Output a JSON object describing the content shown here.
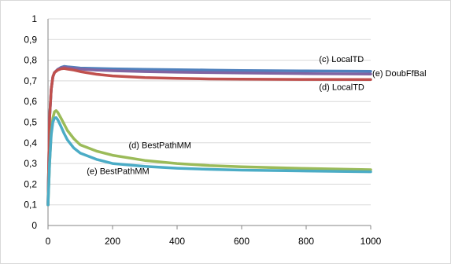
{
  "chart_data": {
    "type": "line",
    "title": "",
    "xlabel": "",
    "ylabel": "",
    "xlim": [
      0,
      1000
    ],
    "ylim": [
      0,
      1
    ],
    "x_ticks": [
      0,
      200,
      400,
      600,
      800,
      1000
    ],
    "y_ticks": [
      "0",
      "0,1",
      "0,2",
      "0,3",
      "0,4",
      "0,5",
      "0,6",
      "0,7",
      "0,8",
      "0,9",
      "1"
    ],
    "grid": "horizontal",
    "legend": "none",
    "series": [
      {
        "name": "(c) LocalTD",
        "color": "#4f81bd",
        "x": [
          0,
          5,
          10,
          15,
          20,
          30,
          40,
          50,
          60,
          80,
          100,
          150,
          200,
          300,
          400,
          500,
          600,
          800,
          1000
        ],
        "y": [
          0.1,
          0.52,
          0.66,
          0.72,
          0.74,
          0.755,
          0.765,
          0.77,
          0.768,
          0.765,
          0.762,
          0.76,
          0.758,
          0.756,
          0.754,
          0.752,
          0.75,
          0.748,
          0.746
        ]
      },
      {
        "name": "(e) DoubFfBal",
        "color": "#8064a2",
        "x": [
          0,
          5,
          10,
          15,
          20,
          30,
          40,
          50,
          60,
          80,
          100,
          150,
          200,
          300,
          400,
          500,
          600,
          800,
          1000
        ],
        "y": [
          0.1,
          0.52,
          0.66,
          0.72,
          0.74,
          0.755,
          0.762,
          0.766,
          0.764,
          0.76,
          0.757,
          0.752,
          0.749,
          0.745,
          0.742,
          0.74,
          0.738,
          0.735,
          0.733
        ]
      },
      {
        "name": "(d) LocalTD",
        "color": "#c0504d",
        "x": [
          0,
          5,
          10,
          15,
          20,
          30,
          40,
          50,
          60,
          80,
          100,
          150,
          200,
          300,
          400,
          500,
          600,
          800,
          1000
        ],
        "y": [
          0.1,
          0.52,
          0.66,
          0.72,
          0.74,
          0.752,
          0.758,
          0.76,
          0.757,
          0.752,
          0.745,
          0.732,
          0.724,
          0.716,
          0.712,
          0.709,
          0.708,
          0.707,
          0.706
        ]
      },
      {
        "name": "(d) BestPathMM",
        "color": "#9bbb59",
        "x": [
          0,
          5,
          10,
          15,
          20,
          25,
          30,
          40,
          50,
          60,
          80,
          100,
          150,
          200,
          300,
          400,
          500,
          600,
          800,
          1000
        ],
        "y": [
          0.1,
          0.3,
          0.45,
          0.52,
          0.55,
          0.556,
          0.548,
          0.52,
          0.49,
          0.46,
          0.42,
          0.39,
          0.36,
          0.34,
          0.315,
          0.3,
          0.29,
          0.284,
          0.276,
          0.27
        ]
      },
      {
        "name": "(e) BestPathMM",
        "color": "#4bacc6",
        "x": [
          0,
          5,
          10,
          15,
          20,
          25,
          30,
          40,
          50,
          60,
          80,
          100,
          150,
          200,
          300,
          400,
          500,
          600,
          800,
          1000
        ],
        "y": [
          0.1,
          0.3,
          0.44,
          0.5,
          0.52,
          0.522,
          0.512,
          0.48,
          0.445,
          0.415,
          0.375,
          0.35,
          0.32,
          0.3,
          0.286,
          0.277,
          0.272,
          0.268,
          0.264,
          0.26
        ]
      }
    ],
    "annotations": [
      {
        "text": "(c) LocalTD",
        "x": 840,
        "y": 0.79
      },
      {
        "text": "(e) DoubFfBal",
        "x": 1005,
        "y": 0.722
      },
      {
        "text": "(d) LocalTD",
        "x": 840,
        "y": 0.655
      },
      {
        "text": "(d) BestPathMM",
        "x": 250,
        "y": 0.375
      },
      {
        "text": "(e) BestPathMM",
        "x": 120,
        "y": 0.25
      }
    ]
  }
}
